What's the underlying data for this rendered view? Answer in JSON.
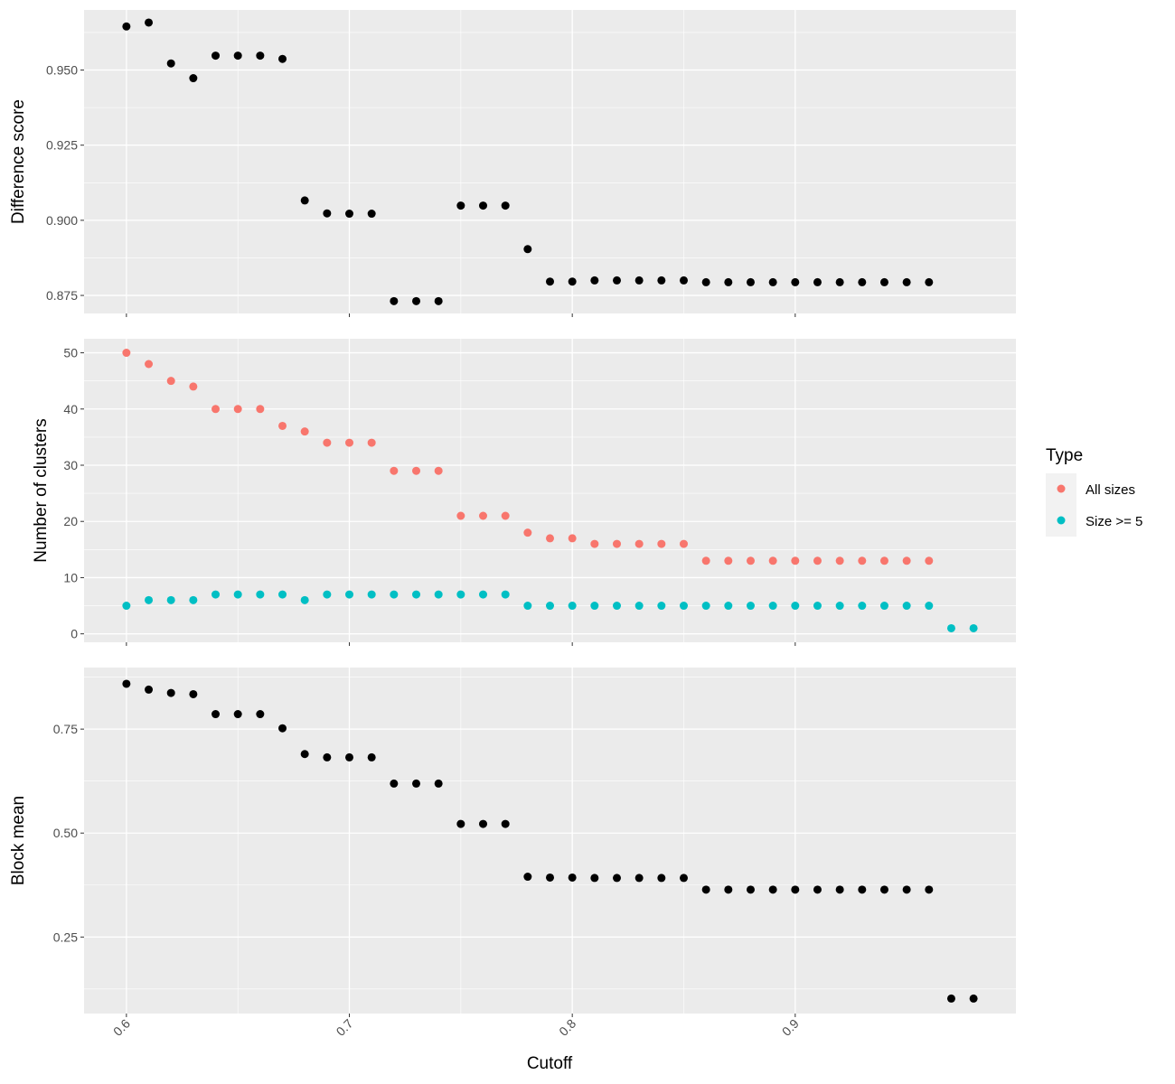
{
  "chart_data": {
    "type": "scatter",
    "x_axis": {
      "label": "Cutoff",
      "range": [
        0.581,
        0.999
      ],
      "ticks": [
        0.6,
        0.7,
        0.8,
        0.9
      ],
      "tick_labels": [
        "0.6",
        "0.7",
        "0.8",
        "0.9"
      ]
    },
    "panels": [
      {
        "ylabel": "Difference score",
        "ylim": [
          0.869,
          0.97
        ],
        "yticks": [
          0.875,
          0.9,
          0.925,
          0.95
        ],
        "ytick_labels": [
          "0.875",
          "0.900",
          "0.925",
          "0.950"
        ],
        "series": [
          {
            "color": "#000000",
            "x": [
              0.6,
              0.61,
              0.62,
              0.63,
              0.64,
              0.65,
              0.66,
              0.67,
              0.68,
              0.69,
              0.7,
              0.71,
              0.72,
              0.73,
              0.74,
              0.75,
              0.76,
              0.77,
              0.78,
              0.79,
              0.8,
              0.81,
              0.82,
              0.83,
              0.84,
              0.85,
              0.86,
              0.87,
              0.88,
              0.89,
              0.9,
              0.91,
              0.92,
              0.93,
              0.94,
              0.95,
              0.96
            ],
            "y": [
              0.9645,
              0.9658,
              0.9522,
              0.9473,
              0.9548,
              0.9548,
              0.9548,
              0.9537,
              0.9066,
              0.9023,
              0.9022,
              0.9022,
              0.8731,
              0.8731,
              0.8731,
              0.9049,
              0.9049,
              0.9049,
              0.8904,
              0.8796,
              0.8796,
              0.88,
              0.88,
              0.88,
              0.88,
              0.88,
              0.8794,
              0.8794,
              0.8794,
              0.8794,
              0.8794,
              0.8794,
              0.8794,
              0.8794,
              0.8794,
              0.8794,
              0.8794
            ]
          }
        ]
      },
      {
        "ylabel": "Number of clusters",
        "ylim": [
          -1.5,
          52.5
        ],
        "yticks": [
          0,
          10,
          20,
          30,
          40,
          50
        ],
        "ytick_labels": [
          "0",
          "10",
          "20",
          "30",
          "40",
          "50"
        ],
        "series": [
          {
            "name": "All sizes",
            "color": "#F8766D",
            "x": [
              0.6,
              0.61,
              0.62,
              0.63,
              0.64,
              0.65,
              0.66,
              0.67,
              0.68,
              0.69,
              0.7,
              0.71,
              0.72,
              0.73,
              0.74,
              0.75,
              0.76,
              0.77,
              0.78,
              0.79,
              0.8,
              0.81,
              0.82,
              0.83,
              0.84,
              0.85,
              0.86,
              0.87,
              0.88,
              0.89,
              0.9,
              0.91,
              0.92,
              0.93,
              0.94,
              0.95,
              0.96
            ],
            "y": [
              50,
              48,
              45,
              44,
              40,
              40,
              40,
              37,
              36,
              34,
              34,
              34,
              29,
              29,
              29,
              21,
              21,
              21,
              18,
              17,
              17,
              16,
              16,
              16,
              16,
              16,
              13,
              13,
              13,
              13,
              13,
              13,
              13,
              13,
              13,
              13,
              13
            ]
          },
          {
            "name": "Size >= 5",
            "color": "#00BFC4",
            "x": [
              0.6,
              0.61,
              0.62,
              0.63,
              0.64,
              0.65,
              0.66,
              0.67,
              0.68,
              0.69,
              0.7,
              0.71,
              0.72,
              0.73,
              0.74,
              0.75,
              0.76,
              0.77,
              0.78,
              0.79,
              0.8,
              0.81,
              0.82,
              0.83,
              0.84,
              0.85,
              0.86,
              0.87,
              0.88,
              0.89,
              0.9,
              0.91,
              0.92,
              0.93,
              0.94,
              0.95,
              0.96,
              0.97,
              0.98
            ],
            "y": [
              5,
              6,
              6,
              6,
              7,
              7,
              7,
              7,
              6,
              7,
              7,
              7,
              7,
              7,
              7,
              7,
              7,
              7,
              5,
              5,
              5,
              5,
              5,
              5,
              5,
              5,
              5,
              5,
              5,
              5,
              5,
              5,
              5,
              5,
              5,
              5,
              5,
              1,
              1
            ]
          }
        ]
      },
      {
        "ylabel": "Block mean",
        "ylim": [
          0.066,
          0.898
        ],
        "yticks": [
          0.25,
          0.5,
          0.75
        ],
        "ytick_labels": [
          "0.25",
          "0.50",
          "0.75"
        ],
        "series": [
          {
            "color": "#000000",
            "x": [
              0.6,
              0.61,
              0.62,
              0.63,
              0.64,
              0.65,
              0.66,
              0.67,
              0.68,
              0.69,
              0.7,
              0.71,
              0.72,
              0.73,
              0.74,
              0.75,
              0.76,
              0.77,
              0.78,
              0.79,
              0.8,
              0.81,
              0.82,
              0.83,
              0.84,
              0.85,
              0.86,
              0.87,
              0.88,
              0.89,
              0.9,
              0.91,
              0.92,
              0.93,
              0.94,
              0.95,
              0.96,
              0.97,
              0.98
            ],
            "y": [
              0.859,
              0.845,
              0.837,
              0.834,
              0.786,
              0.786,
              0.786,
              0.752,
              0.69,
              0.682,
              0.682,
              0.682,
              0.619,
              0.619,
              0.619,
              0.522,
              0.522,
              0.522,
              0.395,
              0.393,
              0.393,
              0.392,
              0.392,
              0.392,
              0.392,
              0.392,
              0.364,
              0.364,
              0.364,
              0.364,
              0.364,
              0.364,
              0.364,
              0.364,
              0.364,
              0.364,
              0.364,
              0.102,
              0.102
            ]
          }
        ]
      }
    ],
    "legend": {
      "title": "Type",
      "placement": "right",
      "entries": [
        {
          "label": "All sizes",
          "color": "#F8766D"
        },
        {
          "label": "Size >= 5",
          "color": "#00BFC4"
        }
      ]
    },
    "grid": true,
    "panel_background": "#EBEBEB"
  }
}
